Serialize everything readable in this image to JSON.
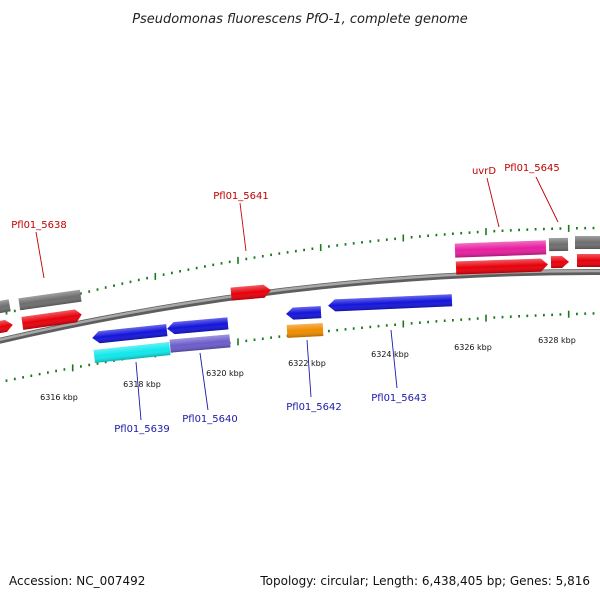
{
  "title": "Pseudomonas fluorescens PfO-1, complete genome",
  "footer": {
    "accession": "Accession: NC_007492",
    "summary": "Topology: circular; Length: 6,438,405 bp; Genes: 5,816"
  },
  "colors": {
    "backbone": "#8a8a8a",
    "tick": "#1a7a1a",
    "red_gene": "#e8000b",
    "blue_gene": "#1414dc",
    "gray_gene": "#6e6e6e",
    "cyan_gene": "#10e8ec",
    "slate_gene": "#6c5ccc",
    "orange_gene": "#f08c00",
    "magenta_gene": "#e81ea0",
    "red_label": "#c00000",
    "blue_label": "#1a1aa8"
  },
  "ticks": [
    "6316 kbp",
    "6318 kbp",
    "6320 kbp",
    "6322 kbp",
    "6324 kbp",
    "6326 kbp",
    "6328 kbp"
  ],
  "labels": {
    "forward": [
      "Pfl01_5638",
      "Pfl01_5641",
      "uvrD",
      "Pfl01_5645"
    ],
    "reverse": [
      "Pfl01_5639",
      "Pfl01_5640",
      "Pfl01_5642",
      "Pfl01_5643"
    ]
  }
}
